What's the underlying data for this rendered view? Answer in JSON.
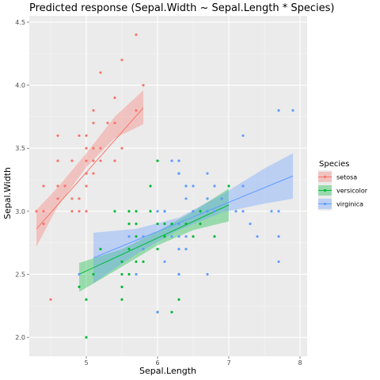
{
  "chart_data": {
    "type": "scatter",
    "title": "Predicted response (Sepal.Width ~ Sepal.Length * Species)",
    "xlabel": "Sepal.Length",
    "ylabel": "Sepal.Width",
    "xlim": [
      4.2,
      8.1
    ],
    "ylim": [
      1.85,
      4.55
    ],
    "xticks": [
      "5",
      "6",
      "7",
      "8"
    ],
    "xtick_values": [
      5,
      6,
      7,
      8
    ],
    "yticks": [
      "2.0",
      "2.5",
      "3.0",
      "3.5",
      "4.0",
      "4.5"
    ],
    "ytick_values": [
      2.0,
      2.5,
      3.0,
      3.5,
      4.0,
      4.5
    ],
    "grid": true,
    "legend_title": "Species",
    "legend_position": "right",
    "series": [
      {
        "name": "setosa",
        "color": "#F8766D",
        "fit": {
          "x": [
            4.3,
            5.8
          ],
          "y": [
            2.86,
            3.82
          ]
        },
        "band": {
          "x": [
            4.3,
            4.6,
            5.0,
            5.4,
            5.8
          ],
          "lower": [
            2.72,
            3.04,
            3.35,
            3.58,
            3.69
          ],
          "upper": [
            3.01,
            3.19,
            3.46,
            3.75,
            3.96
          ]
        },
        "points": [
          [
            4.3,
            3.0
          ],
          [
            4.4,
            2.9
          ],
          [
            4.4,
            3.0
          ],
          [
            4.4,
            3.2
          ],
          [
            4.5,
            2.3
          ],
          [
            4.6,
            3.1
          ],
          [
            4.6,
            3.2
          ],
          [
            4.6,
            3.4
          ],
          [
            4.6,
            3.6
          ],
          [
            4.7,
            3.2
          ],
          [
            4.8,
            3.0
          ],
          [
            4.8,
            3.1
          ],
          [
            4.8,
            3.4
          ],
          [
            4.9,
            3.0
          ],
          [
            4.9,
            3.1
          ],
          [
            4.9,
            3.6
          ],
          [
            5.0,
            3.0
          ],
          [
            5.0,
            3.2
          ],
          [
            5.0,
            3.3
          ],
          [
            5.0,
            3.4
          ],
          [
            5.0,
            3.5
          ],
          [
            5.0,
            3.6
          ],
          [
            5.1,
            3.3
          ],
          [
            5.1,
            3.4
          ],
          [
            5.1,
            3.5
          ],
          [
            5.1,
            3.7
          ],
          [
            5.1,
            3.8
          ],
          [
            5.2,
            3.4
          ],
          [
            5.2,
            3.5
          ],
          [
            5.2,
            4.1
          ],
          [
            5.3,
            3.7
          ],
          [
            5.4,
            3.4
          ],
          [
            5.4,
            3.7
          ],
          [
            5.4,
            3.9
          ],
          [
            5.5,
            3.5
          ],
          [
            5.5,
            4.2
          ],
          [
            5.7,
            3.8
          ],
          [
            5.7,
            4.4
          ],
          [
            5.8,
            4.0
          ]
        ]
      },
      {
        "name": "versicolor",
        "color": "#00BA38",
        "fit": {
          "x": [
            4.9,
            7.0
          ],
          "y": [
            2.5,
            3.05
          ]
        },
        "band": {
          "x": [
            4.9,
            5.5,
            6.0,
            6.5,
            7.0
          ],
          "lower": [
            2.36,
            2.56,
            2.73,
            2.85,
            2.92
          ],
          "upper": [
            2.59,
            2.7,
            2.84,
            3.0,
            3.18
          ]
        },
        "points": [
          [
            4.9,
            2.4
          ],
          [
            5.0,
            2.0
          ],
          [
            5.0,
            2.3
          ],
          [
            5.1,
            2.5
          ],
          [
            5.2,
            2.7
          ],
          [
            5.4,
            3.0
          ],
          [
            5.5,
            2.3
          ],
          [
            5.5,
            2.4
          ],
          [
            5.5,
            2.5
          ],
          [
            5.5,
            2.6
          ],
          [
            5.6,
            2.5
          ],
          [
            5.6,
            2.7
          ],
          [
            5.6,
            2.9
          ],
          [
            5.6,
            3.0
          ],
          [
            5.7,
            2.6
          ],
          [
            5.7,
            2.8
          ],
          [
            5.7,
            2.9
          ],
          [
            5.7,
            3.0
          ],
          [
            5.8,
            2.6
          ],
          [
            5.8,
            2.7
          ],
          [
            5.9,
            3.0
          ],
          [
            5.9,
            3.2
          ],
          [
            6.0,
            2.2
          ],
          [
            6.0,
            2.7
          ],
          [
            6.0,
            2.9
          ],
          [
            6.0,
            3.4
          ],
          [
            6.1,
            2.8
          ],
          [
            6.1,
            2.9
          ],
          [
            6.1,
            3.0
          ],
          [
            6.2,
            2.2
          ],
          [
            6.2,
            2.9
          ],
          [
            6.3,
            2.3
          ],
          [
            6.3,
            2.5
          ],
          [
            6.3,
            3.3
          ],
          [
            6.4,
            2.9
          ],
          [
            6.4,
            3.2
          ],
          [
            6.5,
            2.8
          ],
          [
            6.6,
            2.9
          ],
          [
            6.6,
            3.0
          ],
          [
            6.7,
            3.0
          ],
          [
            6.7,
            3.1
          ],
          [
            6.8,
            2.8
          ],
          [
            6.9,
            3.1
          ],
          [
            7.0,
            3.2
          ]
        ]
      },
      {
        "name": "virginica",
        "color": "#619CFF",
        "fit": {
          "x": [
            5.1,
            7.9
          ],
          "y": [
            2.63,
            3.28
          ]
        },
        "band": {
          "x": [
            5.1,
            5.7,
            6.3,
            6.9,
            7.5,
            7.9
          ],
          "lower": [
            2.43,
            2.66,
            2.85,
            2.99,
            3.06,
            3.1
          ],
          "upper": [
            2.83,
            2.86,
            2.95,
            3.13,
            3.34,
            3.46
          ]
        },
        "points": [
          [
            4.9,
            2.5
          ],
          [
            5.6,
            2.8
          ],
          [
            5.7,
            2.5
          ],
          [
            5.8,
            2.7
          ],
          [
            5.8,
            2.8
          ],
          [
            6.0,
            2.2
          ],
          [
            6.0,
            3.0
          ],
          [
            6.1,
            2.6
          ],
          [
            6.1,
            3.0
          ],
          [
            6.2,
            2.8
          ],
          [
            6.2,
            3.4
          ],
          [
            6.3,
            2.5
          ],
          [
            6.3,
            2.7
          ],
          [
            6.3,
            2.8
          ],
          [
            6.3,
            2.9
          ],
          [
            6.3,
            3.3
          ],
          [
            6.3,
            3.4
          ],
          [
            6.4,
            2.7
          ],
          [
            6.4,
            2.8
          ],
          [
            6.4,
            3.1
          ],
          [
            6.4,
            3.2
          ],
          [
            6.5,
            3.0
          ],
          [
            6.5,
            3.2
          ],
          [
            6.7,
            2.5
          ],
          [
            6.7,
            3.0
          ],
          [
            6.7,
            3.1
          ],
          [
            6.7,
            3.3
          ],
          [
            6.8,
            3.0
          ],
          [
            6.8,
            3.2
          ],
          [
            6.9,
            3.1
          ],
          [
            7.1,
            3.0
          ],
          [
            7.2,
            3.0
          ],
          [
            7.2,
            3.2
          ],
          [
            7.2,
            3.6
          ],
          [
            7.3,
            2.9
          ],
          [
            7.4,
            2.8
          ],
          [
            7.6,
            3.0
          ],
          [
            7.7,
            2.6
          ],
          [
            7.7,
            2.8
          ],
          [
            7.7,
            3.0
          ],
          [
            7.7,
            3.8
          ],
          [
            7.9,
            3.8
          ]
        ]
      }
    ]
  }
}
